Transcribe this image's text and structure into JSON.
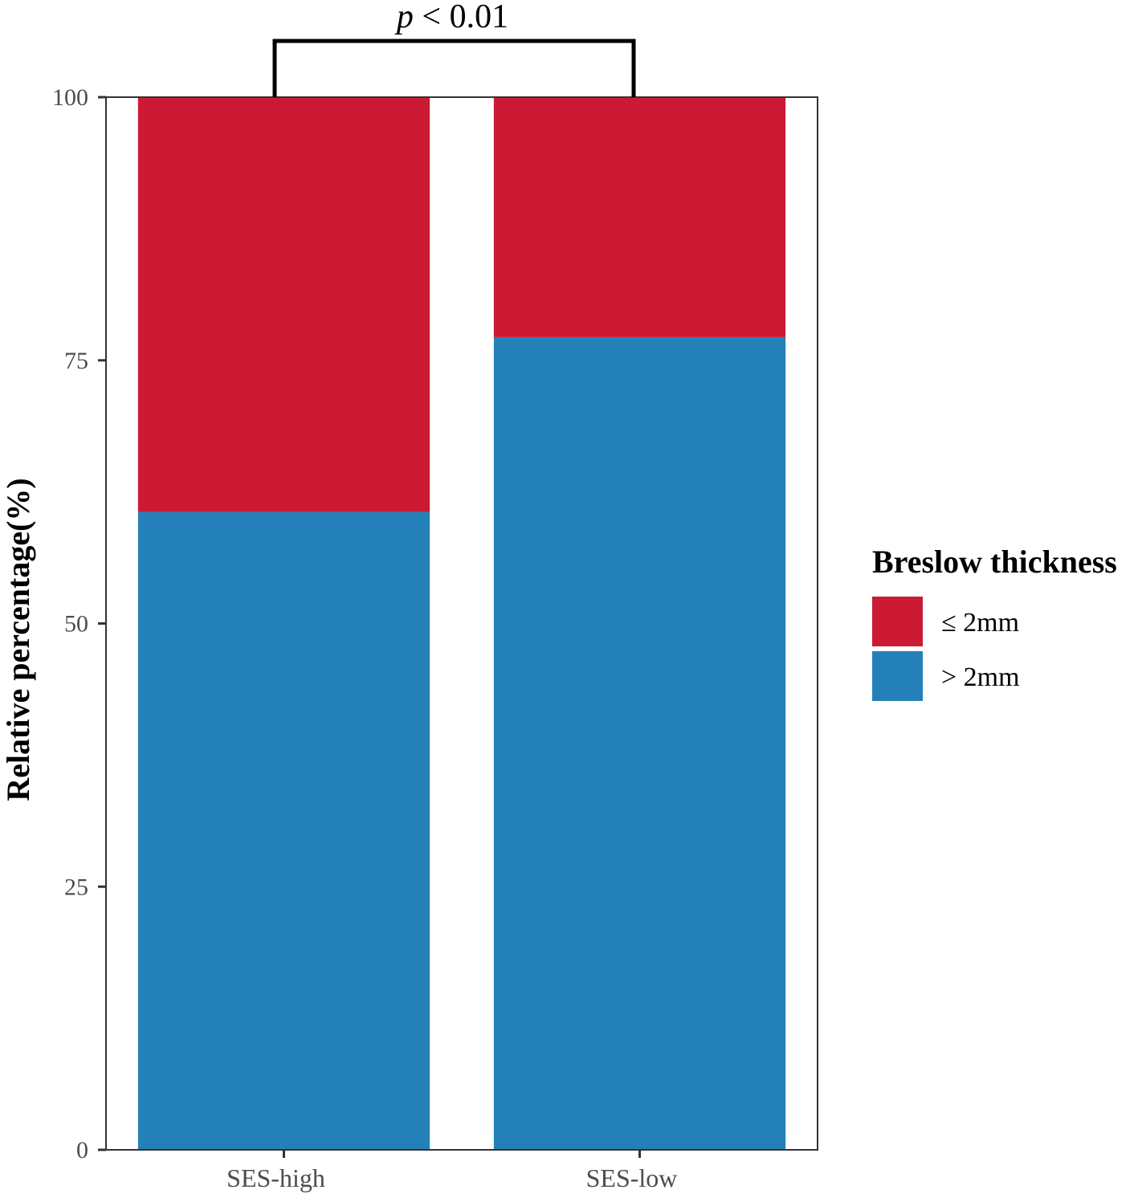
{
  "chart_data": {
    "type": "bar",
    "stacked": true,
    "categories": [
      "SES-high",
      "SES-low"
    ],
    "series": [
      {
        "name": "> 2mm",
        "values": [
          60.6,
          77.2
        ],
        "color": "#2480b9"
      },
      {
        "name": "≤ 2mm",
        "values": [
          39.4,
          22.8
        ],
        "color": "#cc1a34"
      }
    ],
    "ylabel": "Relative percentage(%)",
    "xlabel": "",
    "ylim": [
      0,
      100
    ],
    "yticks": [
      "0",
      "25",
      "50",
      "75",
      "100"
    ],
    "ytick_values": [
      0,
      25,
      50,
      75,
      100
    ],
    "grid": false,
    "legend": {
      "title": "Breslow thickness",
      "placement": "right",
      "entries": [
        {
          "label": "≤ 2mm",
          "color": "#cc1a34"
        },
        {
          "label": "> 2mm",
          "color": "#2480b9"
        }
      ]
    },
    "annotation": {
      "text_italic": "p",
      "text_rest": " < 0.01",
      "between": [
        "SES-high",
        "SES-low"
      ]
    }
  }
}
